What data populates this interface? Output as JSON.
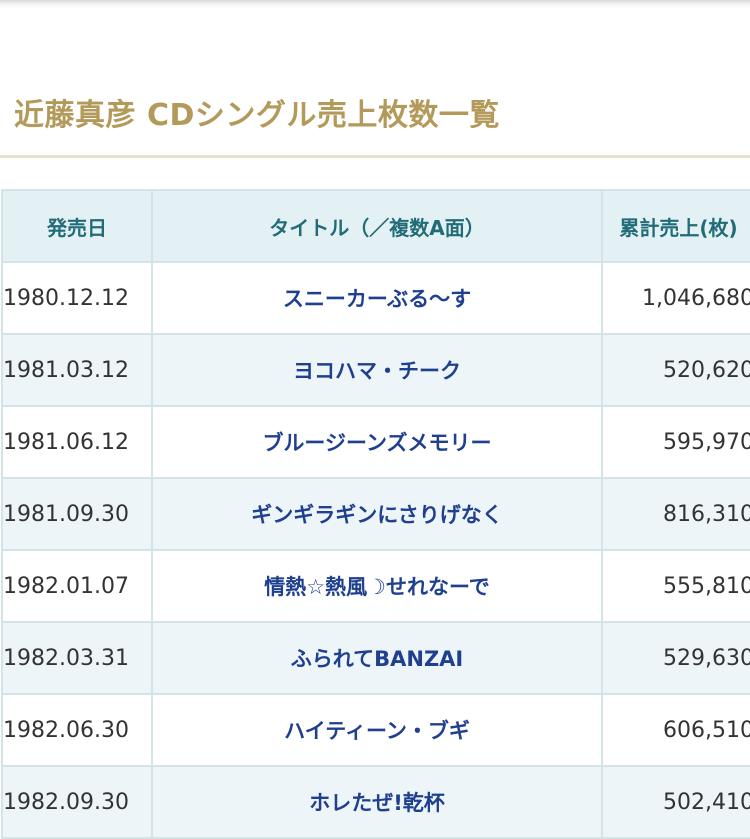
{
  "page": {
    "title": "近藤真彦 CDシングル売上枚数一覧"
  },
  "table": {
    "headers": {
      "date": "発売日",
      "title": "タイトル（／複数A面）",
      "sales": "累計売上(枚)"
    },
    "rows": [
      {
        "date": "1980.12.12",
        "title": "スニーカーぶる〜す",
        "sales": "1,046,680"
      },
      {
        "date": "1981.03.12",
        "title": "ヨコハマ・チーク",
        "sales": "520,620"
      },
      {
        "date": "1981.06.12",
        "title": "ブルージーンズメモリー",
        "sales": "595,970"
      },
      {
        "date": "1981.09.30",
        "title": "ギンギラギンにさりげなく",
        "sales": "816,310"
      },
      {
        "date": "1982.01.07",
        "title": "情熱☆熱風☽せれなーで",
        "sales": "555,810"
      },
      {
        "date": "1982.03.31",
        "title": "ふられてBANZAI",
        "sales": "529,630"
      },
      {
        "date": "1982.06.30",
        "title": "ハイティーン・ブギ",
        "sales": "606,510"
      },
      {
        "date": "1982.09.30",
        "title": "ホレたぜ!乾杯",
        "sales": "502,410"
      }
    ]
  },
  "colors": {
    "title": "#b39a5a",
    "header_bg": "#e3f1f4",
    "header_text": "#226c78",
    "song_title_text": "#1f3f8f",
    "row_alt_bg": "#eef5f9",
    "border": "#d3e3e6"
  }
}
